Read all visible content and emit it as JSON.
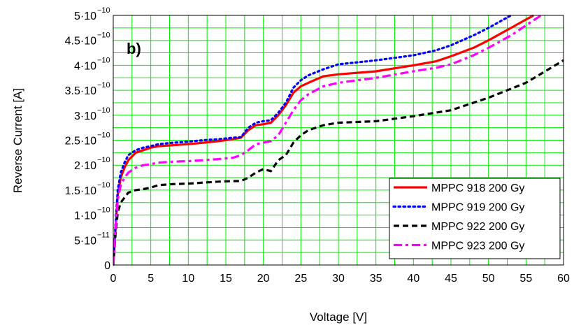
{
  "chart_data": {
    "type": "line",
    "panel_label": "b)",
    "xlabel": "Voltage [V]",
    "ylabel": "Reverse Current [A]",
    "xlim": [
      0,
      60
    ],
    "ylim": [
      0,
      5e-10
    ],
    "grid": true,
    "legend_position": "bottom-right",
    "x_ticks": [
      {
        "value": 0,
        "label": "0"
      },
      {
        "value": 5,
        "label": "5"
      },
      {
        "value": 10,
        "label": "10"
      },
      {
        "value": 15,
        "label": "15"
      },
      {
        "value": 20,
        "label": "20"
      },
      {
        "value": 25,
        "label": "25"
      },
      {
        "value": 30,
        "label": "30"
      },
      {
        "value": 35,
        "label": "35"
      },
      {
        "value": 40,
        "label": "40"
      },
      {
        "value": 45,
        "label": "45"
      },
      {
        "value": 50,
        "label": "50"
      },
      {
        "value": 55,
        "label": "55"
      },
      {
        "value": 60,
        "label": "60"
      }
    ],
    "y_ticks": [
      {
        "value": 0,
        "mantissa": "0",
        "exponent": ""
      },
      {
        "value": 5e-11,
        "mantissa": "5·10",
        "exponent": "−11"
      },
      {
        "value": 1e-10,
        "mantissa": "1·10",
        "exponent": "−10"
      },
      {
        "value": 1.5e-10,
        "mantissa": "1.5·10",
        "exponent": "−10"
      },
      {
        "value": 2e-10,
        "mantissa": "2·10",
        "exponent": "−10"
      },
      {
        "value": 2.5e-10,
        "mantissa": "2.5·10",
        "exponent": "−10"
      },
      {
        "value": 3e-10,
        "mantissa": "3·10",
        "exponent": "−10"
      },
      {
        "value": 3.5e-10,
        "mantissa": "3.5·10",
        "exponent": "−10"
      },
      {
        "value": 4e-10,
        "mantissa": "4·10",
        "exponent": "−10"
      },
      {
        "value": 4.5e-10,
        "mantissa": "4.5·10",
        "exponent": "−10"
      },
      {
        "value": 5e-10,
        "mantissa": "5·10",
        "exponent": "−10"
      }
    ],
    "series": [
      {
        "name": "MPPC 918 200 Gy",
        "color": "#ff0000",
        "style": "solid",
        "x": [
          0,
          0.3,
          0.6,
          1,
          1.5,
          2,
          3,
          4,
          5,
          6,
          8,
          10,
          12,
          14,
          16,
          17,
          18,
          19,
          20,
          21,
          22,
          23,
          24,
          25,
          26,
          28,
          30,
          35,
          40,
          43,
          45,
          48,
          50,
          53,
          56
        ],
        "y": [
          0,
          7e-11,
          1.4e-10,
          1.75e-10,
          1.95e-10,
          2.1e-10,
          2.25e-10,
          2.3e-10,
          2.35e-10,
          2.38e-10,
          2.4e-10,
          2.42e-10,
          2.45e-10,
          2.48e-10,
          2.52e-10,
          2.55e-10,
          2.7e-10,
          2.8e-10,
          2.82e-10,
          2.85e-10,
          3e-10,
          3.2e-10,
          3.45e-10,
          3.58e-10,
          3.65e-10,
          3.78e-10,
          3.82e-10,
          3.88e-10,
          4e-10,
          4.08e-10,
          4.18e-10,
          4.35e-10,
          4.5e-10,
          4.75e-10,
          5e-10
        ]
      },
      {
        "name": "MPPC 919 200 Gy",
        "color": "#0000ff",
        "style": "dotted",
        "x": [
          0,
          0.3,
          0.6,
          1,
          1.5,
          2,
          3,
          4,
          5,
          6,
          8,
          10,
          12,
          14,
          16,
          17,
          18,
          19,
          20,
          21,
          22,
          23,
          24,
          25,
          26,
          28,
          30,
          35,
          40,
          43,
          45,
          48,
          50,
          53
        ],
        "y": [
          0,
          8e-11,
          1.5e-10,
          1.85e-10,
          2.05e-10,
          2.2e-10,
          2.3e-10,
          2.35e-10,
          2.38e-10,
          2.42e-10,
          2.45e-10,
          2.47e-10,
          2.5e-10,
          2.52e-10,
          2.55e-10,
          2.56e-10,
          2.75e-10,
          2.85e-10,
          2.88e-10,
          2.9e-10,
          3.05e-10,
          3.25e-10,
          3.55e-10,
          3.7e-10,
          3.8e-10,
          3.92e-10,
          4.02e-10,
          4.1e-10,
          4.2e-10,
          4.3e-10,
          4.4e-10,
          4.6e-10,
          4.75e-10,
          5e-10
        ]
      },
      {
        "name": "MPPC 922 200 Gy",
        "color": "#000000",
        "style": "dashed",
        "x": [
          0,
          0.3,
          0.6,
          1,
          1.5,
          2,
          3,
          4,
          5,
          6,
          8,
          10,
          12,
          14,
          16,
          17,
          18,
          19,
          20,
          21,
          22,
          23,
          24,
          25,
          26,
          28,
          30,
          35,
          40,
          45,
          50,
          55,
          60
        ],
        "y": [
          0,
          6e-11,
          1.05e-10,
          1.25e-10,
          1.35e-10,
          1.45e-10,
          1.5e-10,
          1.52e-10,
          1.55e-10,
          1.6e-10,
          1.62e-10,
          1.63e-10,
          1.65e-10,
          1.67e-10,
          1.68e-10,
          1.68e-10,
          1.75e-10,
          1.85e-10,
          1.92e-10,
          1.88e-10,
          2.1e-10,
          2.2e-10,
          2.45e-10,
          2.6e-10,
          2.7e-10,
          2.8e-10,
          2.85e-10,
          2.88e-10,
          2.98e-10,
          3.1e-10,
          3.35e-10,
          3.65e-10,
          4.1e-10
        ]
      },
      {
        "name": "MPPC 923 200 Gy",
        "color": "#ff00ff",
        "style": "dashdot",
        "x": [
          0,
          0.3,
          0.6,
          1,
          1.5,
          2,
          3,
          4,
          5,
          6,
          8,
          10,
          12,
          14,
          16,
          17,
          18,
          19,
          20,
          21,
          22,
          23,
          24,
          25,
          26,
          28,
          30,
          35,
          40,
          43,
          45,
          48,
          50,
          53,
          57
        ],
        "y": [
          0,
          7e-11,
          1.3e-10,
          1.6e-10,
          1.75e-10,
          1.85e-10,
          1.95e-10,
          2e-10,
          2.02e-10,
          2.05e-10,
          2.07e-10,
          2.08e-10,
          2.1e-10,
          2.12e-10,
          2.15e-10,
          2.2e-10,
          2.3e-10,
          2.42e-10,
          2.45e-10,
          2.48e-10,
          2.6e-10,
          2.85e-10,
          3.1e-10,
          3.3e-10,
          3.42e-10,
          3.58e-10,
          3.65e-10,
          3.75e-10,
          3.88e-10,
          3.95e-10,
          4.02e-10,
          4.2e-10,
          4.35e-10,
          4.6e-10,
          5e-10
        ]
      }
    ]
  }
}
